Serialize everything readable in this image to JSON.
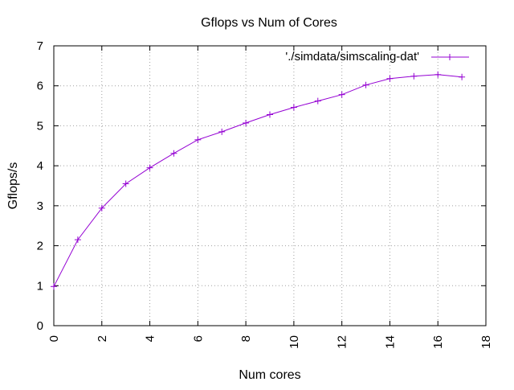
{
  "chart_data": {
    "type": "line",
    "title": "Gflops vs Num of Cores",
    "xlabel": "Num cores",
    "ylabel": "Gflops/s",
    "xlim": [
      0,
      18
    ],
    "ylim": [
      0,
      7
    ],
    "x_ticks": [
      "0",
      "2",
      "4",
      "6",
      "8",
      "10",
      "12",
      "14",
      "16",
      "18"
    ],
    "y_ticks": [
      "0",
      "1",
      "2",
      "3",
      "4",
      "5",
      "6",
      "7"
    ],
    "x_tick_values": [
      0,
      2,
      4,
      6,
      8,
      10,
      12,
      14,
      16,
      18
    ],
    "y_tick_values": [
      0,
      1,
      2,
      3,
      4,
      5,
      6,
      7
    ],
    "grid": true,
    "legend_position": "top-right",
    "series": [
      {
        "name": "'./simdata/simscaling-dat'",
        "color": "#9400d3",
        "marker": "plus",
        "x": [
          0,
          1,
          2,
          3,
          4,
          5,
          6,
          7,
          8,
          9,
          10,
          11,
          12,
          13,
          14,
          15,
          16,
          17
        ],
        "y": [
          0.98,
          2.15,
          2.94,
          3.55,
          3.95,
          4.31,
          4.65,
          4.85,
          5.07,
          5.28,
          5.46,
          5.62,
          5.78,
          6.02,
          6.18,
          6.24,
          6.28,
          6.22
        ]
      }
    ]
  }
}
